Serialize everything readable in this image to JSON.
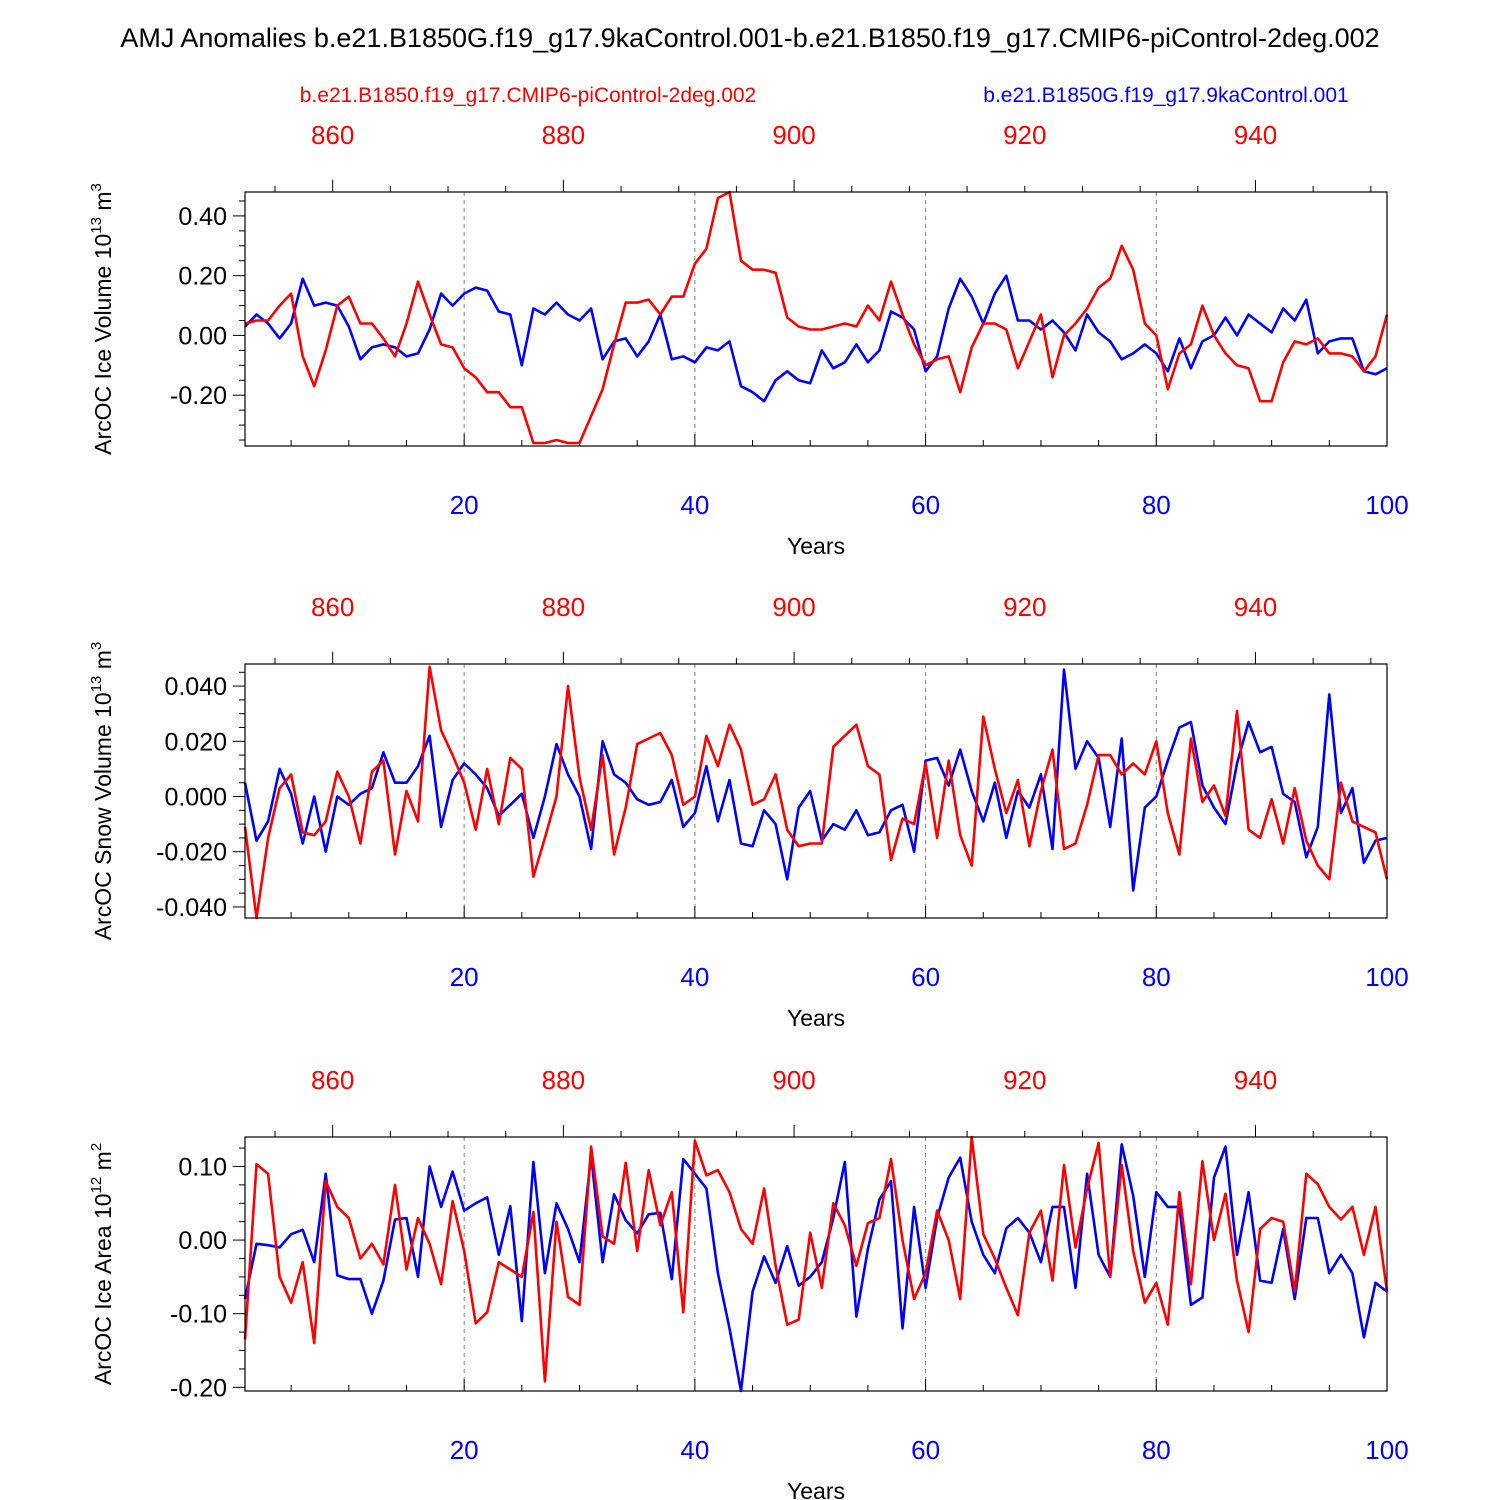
{
  "title": "AMJ Anomalies b.e21.B1850G.f19_g17.9kaControl.001-b.e21.B1850.f19_g17.CMIP6-piControl-2deg.002",
  "legend": {
    "red_label": "b.e21.B1850.f19_g17.CMIP6-piControl-2deg.002",
    "blue_label": "b.e21.B1850G.f19_g17.9kaControl.001"
  },
  "colors": {
    "red": "#ff0000",
    "blue": "#0000ff",
    "text": "#000000",
    "grid": "#808080"
  },
  "chart_data": [
    {
      "type": "line",
      "ylabel_prefix": "ArcOC Ice Volume 10",
      "ylabel_exp": "13",
      "ylabel_suffix": " m",
      "ylabel_unit_exp": "3",
      "xlabel": "Years",
      "xlim": [
        1,
        100
      ],
      "ylim": [
        -0.37,
        0.48
      ],
      "yticks": [
        -0.2,
        0.0,
        0.2,
        0.4
      ],
      "ytick_labels": [
        "-0.20",
        "0.00",
        "0.20",
        "0.40"
      ],
      "ytick_minor": 0.05,
      "xticks_bottom": [
        20,
        40,
        60,
        80,
        100
      ],
      "xtick_labels_bottom": [
        "20",
        "40",
        "60",
        "80",
        "100"
      ],
      "xticks_top": [
        8.6,
        28.6,
        48.6,
        68.6,
        88.6
      ],
      "xtick_labels_top": [
        "860",
        "880",
        "900",
        "920",
        "940"
      ],
      "series": [
        {
          "name": "b.e21.B1850G.f19_g17.9kaControl.001",
          "color": "blue",
          "values": [
            0.03,
            0.07,
            0.04,
            -0.01,
            0.04,
            0.19,
            0.1,
            0.11,
            0.1,
            0.03,
            -0.08,
            -0.04,
            -0.03,
            -0.04,
            -0.07,
            -0.06,
            0.02,
            0.14,
            0.1,
            0.14,
            0.16,
            0.15,
            0.08,
            0.07,
            -0.1,
            0.09,
            0.07,
            0.11,
            0.07,
            0.05,
            0.09,
            -0.08,
            -0.02,
            -0.01,
            -0.07,
            -0.02,
            0.07,
            -0.08,
            -0.07,
            -0.09,
            -0.04,
            -0.05,
            -0.02,
            -0.17,
            -0.19,
            -0.22,
            -0.15,
            -0.12,
            -0.15,
            -0.16,
            -0.05,
            -0.11,
            -0.09,
            -0.03,
            -0.09,
            -0.05,
            0.08,
            0.06,
            0.02,
            -0.12,
            -0.07,
            0.09,
            0.19,
            0.13,
            0.04,
            0.14,
            0.2,
            0.05,
            0.05,
            0.02,
            0.05,
            0.01,
            -0.05,
            0.07,
            0.01,
            -0.02,
            -0.08,
            -0.06,
            -0.03,
            -0.06,
            -0.12,
            -0.01,
            -0.11,
            -0.02,
            0.0,
            0.06,
            0.0,
            0.07,
            0.04,
            0.01,
            0.09,
            0.05,
            0.12,
            -0.06,
            -0.02,
            -0.01,
            -0.01,
            -0.12,
            -0.13,
            -0.11
          ]
        },
        {
          "name": "b.e21.B1850.f19_g17.CMIP6-piControl-2deg.002",
          "color": "red",
          "values": [
            0.04,
            0.05,
            0.05,
            0.1,
            0.14,
            -0.07,
            -0.17,
            -0.05,
            0.1,
            0.13,
            0.04,
            0.04,
            -0.01,
            -0.07,
            0.04,
            0.18,
            0.07,
            -0.03,
            -0.04,
            -0.11,
            -0.14,
            -0.19,
            -0.19,
            -0.24,
            -0.24,
            -0.36,
            -0.36,
            -0.35,
            -0.36,
            -0.36,
            -0.27,
            -0.18,
            -0.03,
            0.11,
            0.11,
            0.12,
            0.07,
            0.13,
            0.13,
            0.24,
            0.29,
            0.46,
            0.48,
            0.25,
            0.22,
            0.22,
            0.21,
            0.06,
            0.03,
            0.02,
            0.02,
            0.03,
            0.04,
            0.03,
            0.1,
            0.05,
            0.18,
            0.07,
            -0.03,
            -0.1,
            -0.08,
            -0.07,
            -0.19,
            -0.04,
            0.04,
            0.04,
            0.02,
            -0.11,
            -0.02,
            0.07,
            -0.14,
            0.0,
            0.04,
            0.09,
            0.16,
            0.19,
            0.3,
            0.22,
            0.04,
            0.0,
            -0.18,
            -0.06,
            -0.03,
            0.1,
            0.0,
            -0.06,
            -0.1,
            -0.11,
            -0.22,
            -0.22,
            -0.09,
            -0.02,
            -0.03,
            -0.01,
            -0.06,
            -0.06,
            -0.07,
            -0.12,
            -0.07,
            0.07
          ]
        }
      ]
    },
    {
      "type": "line",
      "ylabel_prefix": "ArcOC Snow Volume 10",
      "ylabel_exp": "13",
      "ylabel_suffix": " m",
      "ylabel_unit_exp": "3",
      "xlabel": "Years",
      "xlim": [
        1,
        100
      ],
      "ylim": [
        -0.044,
        0.048
      ],
      "yticks": [
        -0.04,
        -0.02,
        0.0,
        0.02,
        0.04
      ],
      "ytick_labels": [
        "-0.040",
        "-0.020",
        "0.000",
        "0.020",
        "0.040"
      ],
      "ytick_minor": 0.005,
      "xticks_bottom": [
        20,
        40,
        60,
        80,
        100
      ],
      "xtick_labels_bottom": [
        "20",
        "40",
        "60",
        "80",
        "100"
      ],
      "xticks_top": [
        8.6,
        28.6,
        48.6,
        68.6,
        88.6
      ],
      "xtick_labels_top": [
        "860",
        "880",
        "900",
        "920",
        "940"
      ],
      "series": [
        {
          "name": "b.e21.B1850G.f19_g17.9kaControl.001",
          "color": "blue",
          "values": [
            0.005,
            -0.016,
            -0.009,
            0.01,
            0.001,
            -0.017,
            0.0,
            -0.02,
            0.0,
            -0.003,
            0.001,
            0.003,
            0.016,
            0.005,
            0.005,
            0.011,
            0.022,
            -0.011,
            0.006,
            0.012,
            0.008,
            0.003,
            -0.007,
            -0.003,
            0.001,
            -0.015,
            0.0,
            0.019,
            0.008,
            0.0,
            -0.019,
            0.02,
            0.008,
            0.005,
            -0.001,
            -0.003,
            -0.002,
            0.006,
            -0.011,
            -0.006,
            0.011,
            -0.009,
            0.006,
            -0.017,
            -0.018,
            -0.005,
            -0.01,
            -0.03,
            -0.004,
            0.002,
            -0.016,
            -0.01,
            -0.012,
            -0.005,
            -0.014,
            -0.013,
            -0.005,
            -0.003,
            -0.02,
            0.013,
            0.014,
            0.004,
            0.017,
            0.002,
            -0.009,
            0.005,
            -0.015,
            0.002,
            -0.004,
            0.008,
            -0.019,
            0.046,
            0.01,
            0.02,
            0.014,
            -0.011,
            0.021,
            -0.034,
            -0.004,
            0.0,
            0.013,
            0.025,
            0.027,
            0.004,
            -0.004,
            -0.01,
            0.012,
            0.027,
            0.016,
            0.018,
            0.001,
            -0.002,
            -0.022,
            -0.011,
            0.037,
            -0.006,
            0.003,
            -0.024,
            -0.016,
            -0.015
          ]
        },
        {
          "name": "b.e21.B1850.f19_g17.CMIP6-piControl-2deg.002",
          "color": "red",
          "values": [
            -0.011,
            -0.044,
            -0.015,
            0.003,
            0.008,
            -0.013,
            -0.014,
            -0.009,
            0.009,
            0.0,
            -0.017,
            0.009,
            0.013,
            -0.021,
            0.002,
            -0.009,
            0.047,
            0.024,
            0.015,
            0.005,
            -0.012,
            0.01,
            -0.01,
            0.014,
            0.01,
            -0.029,
            -0.015,
            0.0,
            0.04,
            0.007,
            -0.012,
            0.015,
            -0.021,
            -0.004,
            0.019,
            0.021,
            0.023,
            0.015,
            -0.003,
            0.0,
            0.022,
            0.011,
            0.026,
            0.017,
            -0.003,
            -0.001,
            0.008,
            -0.012,
            -0.018,
            -0.017,
            -0.017,
            0.018,
            0.022,
            0.026,
            0.011,
            0.008,
            -0.023,
            -0.008,
            -0.01,
            0.012,
            -0.015,
            0.013,
            -0.014,
            -0.025,
            0.029,
            0.01,
            -0.006,
            0.006,
            -0.018,
            0.002,
            0.017,
            -0.019,
            -0.017,
            -0.003,
            0.015,
            0.015,
            0.008,
            0.012,
            0.008,
            0.02,
            -0.006,
            -0.021,
            0.021,
            -0.002,
            0.004,
            -0.007,
            0.031,
            -0.012,
            -0.015,
            -0.001,
            -0.017,
            0.003,
            -0.016,
            -0.025,
            -0.03,
            0.005,
            -0.009,
            -0.011,
            -0.013,
            -0.03
          ]
        }
      ]
    },
    {
      "type": "line",
      "ylabel_prefix": "ArcOC Ice Area 10",
      "ylabel_exp": "12",
      "ylabel_suffix": " m",
      "ylabel_unit_exp": "2",
      "xlabel": "Years",
      "xlim": [
        1,
        100
      ],
      "ylim": [
        -0.205,
        0.14
      ],
      "yticks": [
        -0.2,
        -0.1,
        0.0,
        0.1
      ],
      "ytick_labels": [
        "-0.20",
        "-0.10",
        "0.00",
        "0.10"
      ],
      "ytick_minor": 0.025,
      "xticks_bottom": [
        20,
        40,
        60,
        80,
        100
      ],
      "xtick_labels_bottom": [
        "20",
        "40",
        "60",
        "80",
        "100"
      ],
      "xticks_top": [
        8.6,
        28.6,
        48.6,
        68.6,
        88.6
      ],
      "xtick_labels_top": [
        "860",
        "880",
        "900",
        "920",
        "940"
      ],
      "series": [
        {
          "name": "b.e21.B1850G.f19_g17.9kaControl.001",
          "color": "blue",
          "values": [
            -0.08,
            -0.005,
            -0.007,
            -0.01,
            0.008,
            0.014,
            -0.03,
            0.09,
            -0.048,
            -0.053,
            -0.053,
            -0.1,
            -0.055,
            0.028,
            0.03,
            -0.05,
            0.1,
            0.045,
            0.093,
            0.04,
            0.05,
            0.058,
            -0.02,
            0.046,
            -0.11,
            0.106,
            -0.045,
            0.05,
            0.015,
            -0.03,
            0.115,
            -0.03,
            0.062,
            0.027,
            0.009,
            0.035,
            0.037,
            -0.053,
            0.11,
            0.09,
            0.07,
            -0.045,
            -0.12,
            -0.205,
            -0.07,
            -0.022,
            -0.058,
            -0.008,
            -0.062,
            -0.05,
            -0.03,
            0.03,
            0.106,
            -0.104,
            -0.012,
            0.055,
            0.08,
            -0.12,
            0.045,
            -0.065,
            0.03,
            0.085,
            0.112,
            0.025,
            -0.02,
            -0.045,
            0.016,
            0.03,
            0.01,
            -0.03,
            0.045,
            0.045,
            -0.065,
            0.09,
            -0.02,
            -0.05,
            0.13,
            0.06,
            -0.05,
            0.065,
            0.045,
            0.045,
            -0.088,
            -0.078,
            0.085,
            0.127,
            -0.02,
            0.065,
            -0.055,
            -0.058,
            0.015,
            -0.08,
            0.03,
            0.03,
            -0.045,
            -0.02,
            -0.045,
            -0.132,
            -0.058,
            -0.07
          ]
        },
        {
          "name": "b.e21.B1850.f19_g17.CMIP6-piControl-2deg.002",
          "color": "red",
          "values": [
            -0.135,
            0.103,
            0.09,
            -0.05,
            -0.085,
            -0.03,
            -0.14,
            0.08,
            0.045,
            0.03,
            -0.025,
            -0.005,
            -0.033,
            0.075,
            -0.04,
            0.03,
            -0.005,
            -0.06,
            0.053,
            -0.015,
            -0.113,
            -0.098,
            -0.03,
            -0.04,
            -0.05,
            0.038,
            -0.192,
            0.025,
            -0.077,
            -0.088,
            0.127,
            0.005,
            -0.005,
            0.105,
            -0.015,
            0.095,
            0.02,
            0.065,
            -0.098,
            0.135,
            0.088,
            0.095,
            0.065,
            0.015,
            -0.005,
            0.07,
            -0.035,
            -0.115,
            -0.108,
            0.01,
            -0.065,
            0.05,
            0.02,
            -0.035,
            0.023,
            0.03,
            0.11,
            0.0,
            -0.08,
            -0.045,
            0.04,
            0.0,
            -0.08,
            0.14,
            0.008,
            -0.025,
            -0.065,
            -0.102,
            0.01,
            0.04,
            -0.055,
            0.102,
            -0.01,
            0.07,
            0.132,
            -0.05,
            0.102,
            -0.015,
            -0.085,
            -0.058,
            -0.115,
            0.065,
            -0.06,
            0.107,
            0.0,
            0.063,
            -0.055,
            -0.125,
            0.015,
            0.03,
            0.025,
            -0.07,
            0.09,
            0.076,
            0.045,
            0.028,
            0.045,
            -0.02,
            0.045,
            -0.07
          ]
        }
      ]
    }
  ]
}
